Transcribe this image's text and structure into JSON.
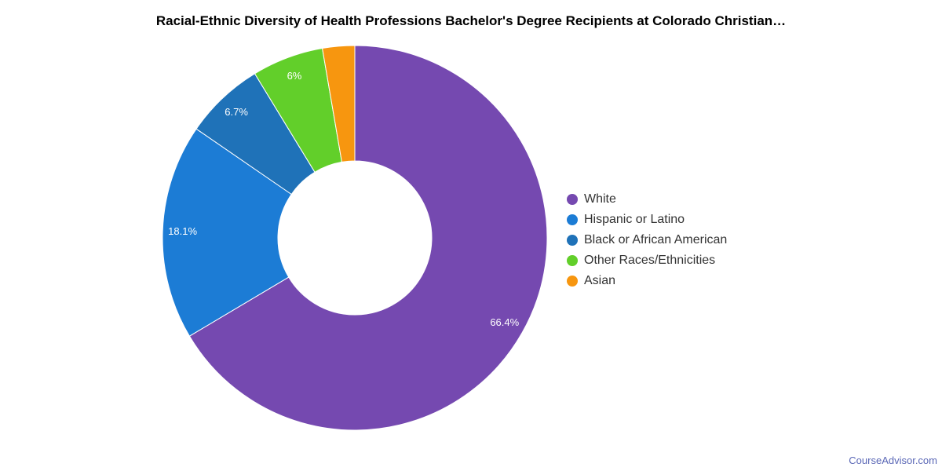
{
  "chart_data": {
    "type": "pie",
    "title": "Racial-Ethnic Diversity of Health Professions Bachelor's Degree Recipients at Colorado Christian…",
    "categories": [
      "White",
      "Hispanic or Latino",
      "Black or African American",
      "Other Races/Ethnicities",
      "Asian"
    ],
    "values": [
      66.4,
      18.1,
      6.7,
      6.0,
      2.7
    ],
    "value_labels": [
      "66.4%",
      "18.1%",
      "6.7%",
      "6%",
      ""
    ],
    "colors": [
      "#7549b0",
      "#1c7cd5",
      "#1f72b8",
      "#62cf2a",
      "#f7960f"
    ],
    "donut": true,
    "legend_position": "right"
  },
  "watermark": "CourseAdvisor.com"
}
